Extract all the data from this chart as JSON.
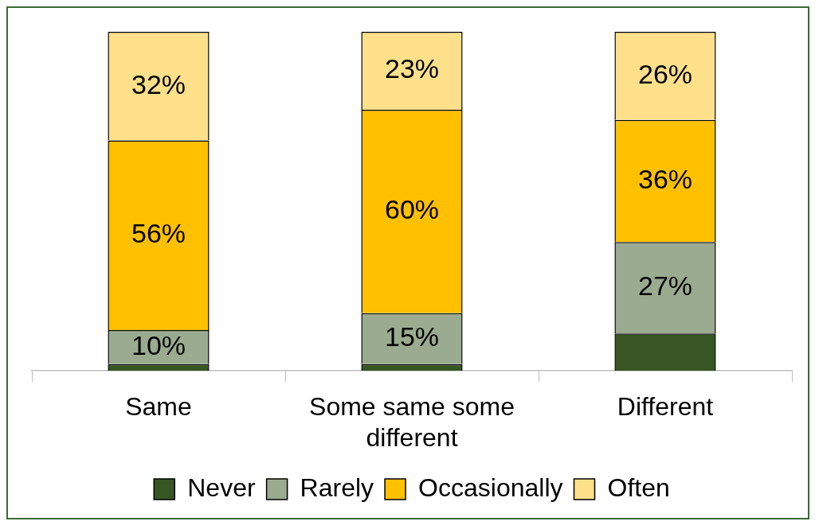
{
  "chart_data": {
    "type": "bar",
    "stacked": true,
    "categories": [
      "Same",
      "Some same some different",
      "Different"
    ],
    "series": [
      {
        "name": "Never",
        "color": "#375623",
        "values": [
          2,
          2,
          11
        ],
        "value_labels": [
          null,
          null,
          null
        ]
      },
      {
        "name": "Rarely",
        "color": "#9aab8f",
        "values": [
          10,
          15,
          27
        ],
        "value_labels": [
          "10%",
          "15%",
          "27%"
        ]
      },
      {
        "name": "Occasionally",
        "color": "#ffc000",
        "values": [
          56,
          60,
          36
        ],
        "value_labels": [
          "56%",
          "60%",
          "36%"
        ]
      },
      {
        "name": "Often",
        "color": "#ffe08a",
        "values": [
          32,
          23,
          26
        ],
        "value_labels": [
          "32%",
          "23%",
          "26%"
        ]
      }
    ],
    "ylim": [
      0,
      100
    ],
    "tick_labels": "x",
    "legend": "bottom",
    "grid": false
  }
}
